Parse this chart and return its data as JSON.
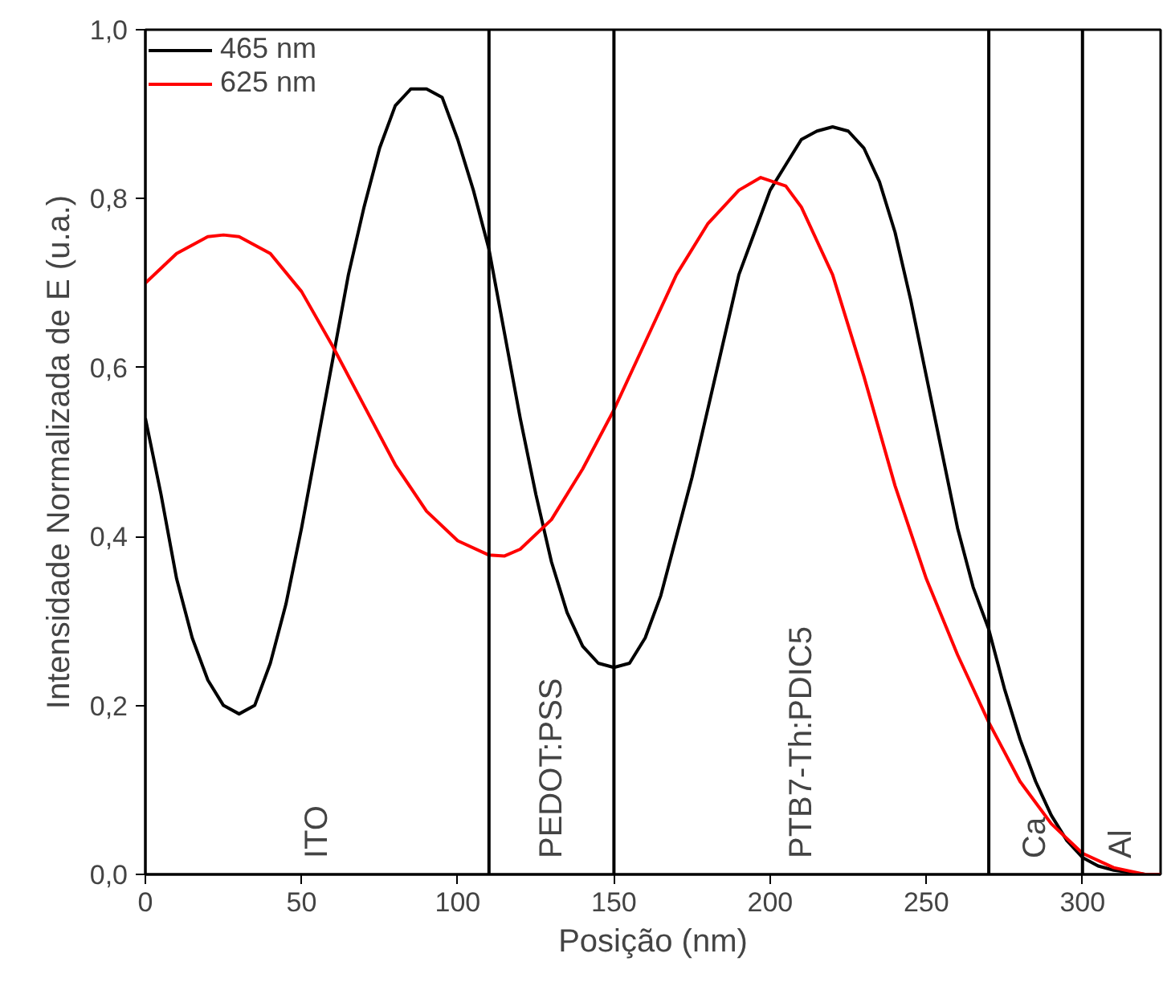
{
  "chart_data": {
    "type": "line",
    "xlabel": "Posição (nm)",
    "ylabel": "Intensidade Normalizada de E (u.a.)",
    "x": [
      0,
      5,
      10,
      15,
      20,
      25,
      30,
      35,
      40,
      45,
      50,
      55,
      60,
      65,
      70,
      75,
      80,
      85,
      90,
      95,
      100,
      105,
      110,
      115,
      120,
      125,
      130,
      135,
      140,
      145,
      150,
      155,
      160,
      165,
      170,
      175,
      180,
      185,
      190,
      195,
      200,
      205,
      210,
      215,
      220,
      225,
      230,
      235,
      240,
      245,
      250,
      255,
      260,
      265,
      270,
      275,
      280,
      285,
      290,
      295,
      300,
      305,
      310,
      320,
      325
    ],
    "series": [
      {
        "name": "465 nm",
        "color": "#000000",
        "values": [
          0.54,
          0.45,
          0.35,
          0.28,
          0.23,
          0.2,
          0.19,
          0.2,
          0.25,
          0.32,
          0.41,
          0.51,
          0.61,
          0.71,
          0.79,
          0.86,
          0.91,
          0.93,
          0.93,
          0.92,
          0.87,
          0.81,
          0.74,
          0.64,
          0.54,
          0.45,
          0.37,
          0.31,
          0.27,
          0.25,
          0.245,
          0.25,
          0.28,
          0.33,
          0.4,
          0.47,
          0.55,
          0.63,
          0.71,
          0.76,
          0.81,
          0.84,
          0.87,
          0.88,
          0.885,
          0.88,
          0.86,
          0.82,
          0.76,
          0.68,
          0.59,
          0.5,
          0.41,
          0.34,
          0.29,
          0.22,
          0.16,
          0.11,
          0.07,
          0.04,
          0.02,
          0.01,
          0.005,
          0,
          0
        ]
      },
      {
        "name": "625 nm",
        "color": "#ff0000",
        "x": [
          0,
          10,
          20,
          25,
          30,
          40,
          50,
          60,
          70,
          80,
          90,
          100,
          110,
          115,
          120,
          130,
          140,
          150,
          160,
          170,
          180,
          190,
          197,
          205,
          210,
          220,
          230,
          240,
          250,
          260,
          270,
          280,
          290,
          300,
          310,
          320,
          325
        ],
        "values": [
          0.7,
          0.735,
          0.755,
          0.757,
          0.755,
          0.735,
          0.69,
          0.625,
          0.555,
          0.485,
          0.43,
          0.395,
          0.378,
          0.377,
          0.385,
          0.42,
          0.48,
          0.55,
          0.63,
          0.71,
          0.77,
          0.81,
          0.825,
          0.815,
          0.79,
          0.71,
          0.59,
          0.46,
          0.35,
          0.26,
          0.18,
          0.11,
          0.06,
          0.025,
          0.008,
          0,
          0
        ]
      }
    ],
    "xlim": [
      0,
      325
    ],
    "ylim": [
      0,
      1.0
    ],
    "xticks": [
      0,
      50,
      100,
      150,
      200,
      250,
      300
    ],
    "yticks": [
      {
        "value": 0,
        "label": "0,0"
      },
      {
        "value": 0.2,
        "label": "0,2"
      },
      {
        "value": 0.4,
        "label": "0,4"
      },
      {
        "value": 0.6,
        "label": "0,6"
      },
      {
        "value": 0.8,
        "label": "0,8"
      },
      {
        "value": 1.0,
        "label": "1,0"
      }
    ],
    "ref_lines": [
      {
        "axis": "x",
        "value": 110,
        "color": "#000000"
      },
      {
        "axis": "x",
        "value": 150,
        "color": "#000000"
      },
      {
        "axis": "x",
        "value": 270,
        "color": "#000000"
      },
      {
        "axis": "x",
        "value": 300,
        "color": "#000000"
      }
    ],
    "annotations": [
      "ITO",
      "PEDOT:PSS",
      "PTB7-Th:PDIC5",
      "Ca",
      "Al"
    ],
    "grid": false,
    "legend": "top left",
    "marker": "none",
    "line_style": "solid"
  }
}
